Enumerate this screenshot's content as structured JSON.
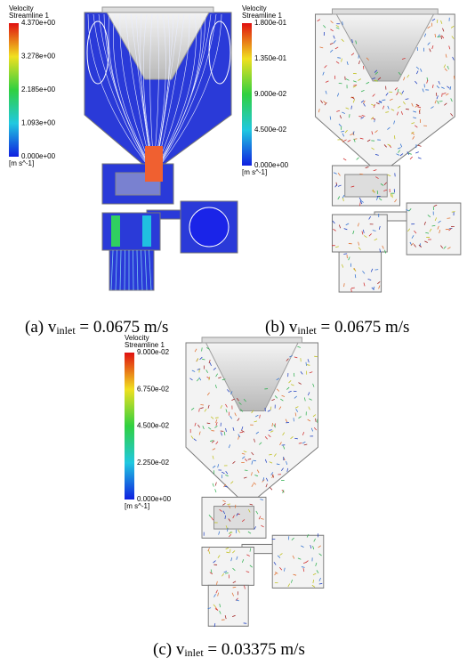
{
  "panels": [
    {
      "legend": {
        "title": "Velocity",
        "subtitle": "Streamline 1",
        "ticks": [
          "4.370e+00",
          "3.278e+00",
          "2.185e+00",
          "1.093e+00",
          "0.000e+00"
        ],
        "unit": "[m s^-1]"
      },
      "caption": {
        "label": "(a)",
        "symbol": "v",
        "subscript": "inlet",
        "value": "= 0.0675 m/s"
      }
    },
    {
      "legend": {
        "title": "Velocity",
        "subtitle": "Streamline 1",
        "ticks": [
          "1.800e-01",
          "1.350e-01",
          "9.000e-02",
          "4.500e-02",
          "0.000e+00"
        ],
        "unit": "[m s^-1]"
      },
      "caption": {
        "label": "(b)",
        "symbol": "v",
        "subscript": "inlet",
        "value": "= 0.0675 m/s"
      }
    },
    {
      "legend": {
        "title": "Velocity",
        "subtitle": "Streamline 1",
        "ticks": [
          "9.000e-02",
          "6.750e-02",
          "4.500e-02",
          "2.250e-02",
          "0.000e+00"
        ],
        "unit": "[m s^-1]"
      },
      "caption": {
        "label": "(c)",
        "symbol": "v",
        "subscript": "inlet",
        "value": "= 0.03375 m/s"
      }
    }
  ]
}
